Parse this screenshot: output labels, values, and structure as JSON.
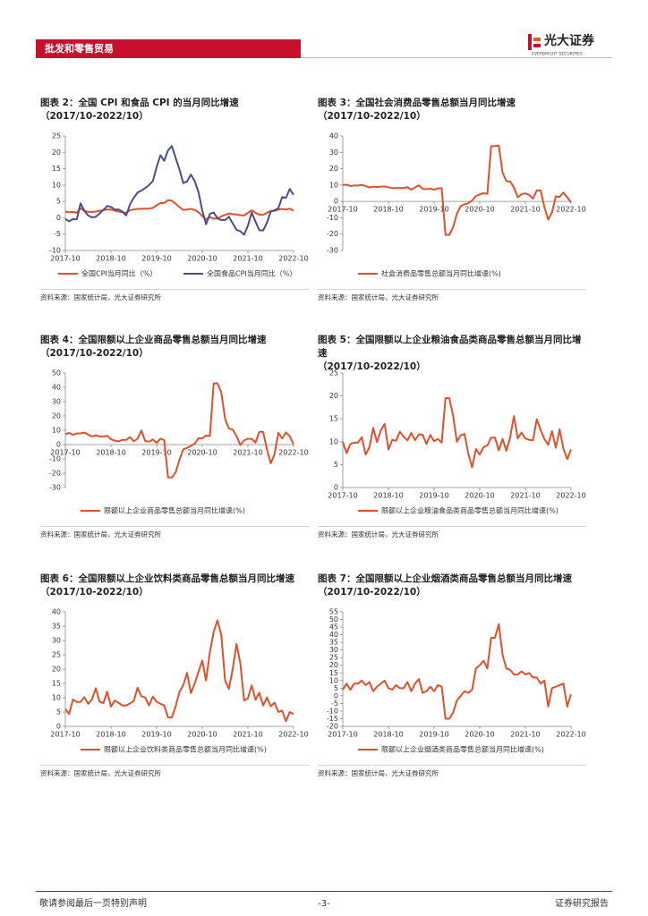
{
  "header": {
    "section": "批发和零售贸易",
    "logo": "光大证券",
    "logo_en": "EVERBRIGHT SECURITIES"
  },
  "chart_data": [
    {
      "type": "line",
      "title": "图表 2：全国 CPI 和食品 CPI 的当月同比增速",
      "subtitle": "（2017/10-2022/10）",
      "source": "资料来源：国家统计局，光大证券研究所",
      "x_labels_at": "bottom",
      "x": [
        "2017-10",
        "2017-11",
        "2017-12",
        "2018-01",
        "2018-02",
        "2018-03",
        "2018-04",
        "2018-05",
        "2018-06",
        "2018-07",
        "2018-08",
        "2018-09",
        "2018-10",
        "2018-11",
        "2018-12",
        "2019-01",
        "2019-02",
        "2019-03",
        "2019-04",
        "2019-05",
        "2019-06",
        "2019-07",
        "2019-08",
        "2019-09",
        "2019-10",
        "2019-11",
        "2019-12",
        "2020-01",
        "2020-02",
        "2020-03",
        "2020-04",
        "2020-05",
        "2020-06",
        "2020-07",
        "2020-08",
        "2020-09",
        "2020-10",
        "2020-11",
        "2020-12",
        "2021-01",
        "2021-02",
        "2021-03",
        "2021-04",
        "2021-05",
        "2021-06",
        "2021-07",
        "2021-08",
        "2021-09",
        "2021-10",
        "2021-11",
        "2021-12",
        "2022-01",
        "2022-02",
        "2022-03",
        "2022-04",
        "2022-05",
        "2022-06",
        "2022-07",
        "2022-08",
        "2022-09",
        "2022-10"
      ],
      "xticks": [
        "2017-10",
        "2018-10",
        "2019-10",
        "2020-10",
        "2021-10",
        "2022-10"
      ],
      "ylim": [
        -10,
        25
      ],
      "yticks": [
        -10,
        -5,
        0,
        5,
        10,
        15,
        20,
        25
      ],
      "series": [
        {
          "name": "全国CPI当月同比（%）",
          "color": "#e0502a",
          "values": [
            1.9,
            1.7,
            1.8,
            1.5,
            2.9,
            2.1,
            1.8,
            1.8,
            1.9,
            2.1,
            2.3,
            2.5,
            2.5,
            2.2,
            1.9,
            1.7,
            1.5,
            2.3,
            2.5,
            2.7,
            2.7,
            2.8,
            2.8,
            3.0,
            3.8,
            4.5,
            4.5,
            5.4,
            5.2,
            4.3,
            3.3,
            2.4,
            2.5,
            2.7,
            2.4,
            1.7,
            0.5,
            -0.5,
            0.2,
            -0.3,
            -0.2,
            0.4,
            0.9,
            1.3,
            1.1,
            1.0,
            0.8,
            0.7,
            1.5,
            2.3,
            1.5,
            0.9,
            0.9,
            1.5,
            2.1,
            2.1,
            2.5,
            2.7,
            2.5,
            2.8,
            2.1
          ]
        },
        {
          "name": "全国食品CPI当月同比（%）",
          "color": "#4b4e8c",
          "values": [
            -0.4,
            -1.1,
            -0.4,
            -0.5,
            4.4,
            2.1,
            0.7,
            0.1,
            0.3,
            1.3,
            2.4,
            3.6,
            3.3,
            2.5,
            2.5,
            1.9,
            0.7,
            4.1,
            6.1,
            7.7,
            8.3,
            9.1,
            10.0,
            11.2,
            15.5,
            19.1,
            17.4,
            20.6,
            21.9,
            18.3,
            14.8,
            10.6,
            11.1,
            13.2,
            11.2,
            7.9,
            2.2,
            -2.0,
            1.2,
            1.6,
            -0.2,
            -0.7,
            -0.7,
            0.3,
            -1.7,
            -3.7,
            -4.1,
            -5.2,
            -2.4,
            1.6,
            -1.2,
            -3.8,
            -3.9,
            -1.5,
            1.9,
            2.3,
            2.9,
            6.3,
            6.1,
            8.8,
            7.0
          ]
        }
      ]
    },
    {
      "type": "line",
      "title": "图表 3：全国社会消费品零售总额当月同比增速",
      "subtitle": "（2017/10-2022/10）",
      "source": "资料来源：国家统计局，光大证券研究所",
      "x_labels_at": "zero",
      "x": [
        "2017-10",
        "2017-11",
        "2017-12",
        "2018-01",
        "2018-02",
        "2018-03",
        "2018-04",
        "2018-05",
        "2018-06",
        "2018-07",
        "2018-08",
        "2018-09",
        "2018-10",
        "2018-11",
        "2018-12",
        "2019-01",
        "2019-02",
        "2019-03",
        "2019-04",
        "2019-05",
        "2019-06",
        "2019-07",
        "2019-08",
        "2019-09",
        "2019-10",
        "2019-11",
        "2019-12",
        "2020-01",
        "2020-02",
        "2020-03",
        "2020-04",
        "2020-05",
        "2020-06",
        "2020-07",
        "2020-08",
        "2020-09",
        "2020-10",
        "2020-11",
        "2020-12",
        "2021-01",
        "2021-02",
        "2021-03",
        "2021-04",
        "2021-05",
        "2021-06",
        "2021-07",
        "2021-08",
        "2021-09",
        "2021-10",
        "2021-11",
        "2021-12",
        "2022-01",
        "2022-02",
        "2022-03",
        "2022-04",
        "2022-05",
        "2022-06",
        "2022-07",
        "2022-08",
        "2022-09",
        "2022-10"
      ],
      "xticks": [
        "2017-10",
        "2018-10",
        "2019-10",
        "2020-10",
        "2021-10",
        "2022-10"
      ],
      "ylim": [
        -30,
        40
      ],
      "yticks": [
        -30,
        -20,
        -10,
        0,
        10,
        20,
        30,
        40
      ],
      "series": [
        {
          "name": "社会消费品零售总额当月同比增速(%)",
          "color": "#e0502a",
          "values": [
            10.0,
            10.2,
            9.4,
            9.7,
            9.7,
            10.1,
            9.4,
            8.5,
            9.0,
            8.8,
            9.0,
            9.2,
            8.6,
            8.1,
            8.2,
            8.2,
            8.2,
            8.7,
            7.2,
            8.6,
            9.8,
            7.6,
            7.5,
            7.8,
            7.2,
            8.0,
            8.0,
            -20.5,
            -20.5,
            -15.8,
            -7.5,
            -2.8,
            -1.8,
            -1.1,
            0.5,
            3.3,
            4.3,
            5.0,
            4.6,
            33.8,
            33.8,
            34.2,
            17.7,
            12.4,
            12.1,
            8.5,
            2.5,
            4.4,
            4.9,
            3.9,
            1.7,
            6.7,
            6.7,
            -3.5,
            -11.1,
            -6.7,
            3.1,
            2.7,
            5.4,
            2.5,
            -0.5
          ]
        }
      ]
    },
    {
      "type": "line",
      "title": "图表 4：全国限额以上企业商品零售总额当月同比增速",
      "subtitle": "（2017/10-2022/10）",
      "source": "资料来源：国家统计局，光大证券研究所",
      "x_labels_at": "zero",
      "x": [
        "2017-10",
        "2017-11",
        "2017-12",
        "2018-01",
        "2018-02",
        "2018-03",
        "2018-04",
        "2018-05",
        "2018-06",
        "2018-07",
        "2018-08",
        "2018-09",
        "2018-10",
        "2018-11",
        "2018-12",
        "2019-01",
        "2019-02",
        "2019-03",
        "2019-04",
        "2019-05",
        "2019-06",
        "2019-07",
        "2019-08",
        "2019-09",
        "2019-10",
        "2019-11",
        "2019-12",
        "2020-01",
        "2020-02",
        "2020-03",
        "2020-04",
        "2020-05",
        "2020-06",
        "2020-07",
        "2020-08",
        "2020-09",
        "2020-10",
        "2020-11",
        "2020-12",
        "2021-01",
        "2021-02",
        "2021-03",
        "2021-04",
        "2021-05",
        "2021-06",
        "2021-07",
        "2021-08",
        "2021-09",
        "2021-10",
        "2021-11",
        "2021-12",
        "2022-01",
        "2022-02",
        "2022-03",
        "2022-04",
        "2022-05",
        "2022-06",
        "2022-07",
        "2022-08",
        "2022-09",
        "2022-10"
      ],
      "xticks": [
        "2017-10",
        "2018-10",
        "2019-10",
        "2020-10",
        "2021-10",
        "2022-10"
      ],
      "ylim": [
        -30,
        50
      ],
      "yticks": [
        -30,
        -20,
        -10,
        0,
        10,
        20,
        30,
        40,
        50
      ],
      "series": [
        {
          "name": "限额以上企业商品零售总额当月同比增速(%)",
          "color": "#e0502a",
          "values": [
            7.2,
            8.2,
            6.8,
            7.8,
            7.8,
            8.4,
            7.0,
            5.6,
            6.5,
            5.7,
            5.7,
            6.1,
            3.7,
            2.8,
            2.2,
            3.3,
            3.3,
            5.2,
            2.3,
            4.1,
            9.9,
            2.5,
            2.0,
            3.6,
            1.2,
            4.1,
            3.1,
            -23.0,
            -23.0,
            -19.4,
            -10.6,
            -3.4,
            -2.3,
            -1.0,
            0.6,
            4.4,
            4.4,
            6.3,
            6.0,
            42.8,
            42.8,
            36.4,
            18.0,
            11.2,
            10.5,
            6.0,
            -0.3,
            2.9,
            4.1,
            3.9,
            1.4,
            8.9,
            8.9,
            -3.2,
            -13.1,
            -6.7,
            8.2,
            4.2,
            8.5,
            5.8,
            0.2
          ]
        }
      ]
    },
    {
      "type": "line",
      "title": "图表 5：全国限额以上企业粮油食品类商品零售总额当月同比增速",
      "subtitle": "（2017/10-2022/10）",
      "source": "资料来源：国家统计局，光大证券研究所",
      "x_labels_at": "zero",
      "x": [
        "2017-10",
        "2017-11",
        "2017-12",
        "2018-01",
        "2018-02",
        "2018-03",
        "2018-04",
        "2018-05",
        "2018-06",
        "2018-07",
        "2018-08",
        "2018-09",
        "2018-10",
        "2018-11",
        "2018-12",
        "2019-01",
        "2019-02",
        "2019-03",
        "2019-04",
        "2019-05",
        "2019-06",
        "2019-07",
        "2019-08",
        "2019-09",
        "2019-10",
        "2019-11",
        "2019-12",
        "2020-01",
        "2020-02",
        "2020-03",
        "2020-04",
        "2020-05",
        "2020-06",
        "2020-07",
        "2020-08",
        "2020-09",
        "2020-10",
        "2020-11",
        "2020-12",
        "2021-01",
        "2021-02",
        "2021-03",
        "2021-04",
        "2021-05",
        "2021-06",
        "2021-07",
        "2021-08",
        "2021-09",
        "2021-10",
        "2021-11",
        "2021-12",
        "2022-01",
        "2022-02",
        "2022-03",
        "2022-04",
        "2022-05",
        "2022-06",
        "2022-07",
        "2022-08",
        "2022-09",
        "2022-10"
      ],
      "xticks": [
        "2017-10",
        "2018-10",
        "2019-10",
        "2020-10",
        "2021-10",
        "2022-10"
      ],
      "ylim": [
        0,
        25
      ],
      "yticks": [
        0,
        5,
        10,
        15,
        20,
        25
      ],
      "series": [
        {
          "name": "限额以上企业粮油食品类商品零售总额当月同比增速(%)",
          "color": "#e0502a",
          "values": [
            10.0,
            7.5,
            9.5,
            9.8,
            9.8,
            11.0,
            7.2,
            8.8,
            13.0,
            9.9,
            12.5,
            13.9,
            8.3,
            10.4,
            10.2,
            12.2,
            11.1,
            10.3,
            11.9,
            10.3,
            11.6,
            11.5,
            9.5,
            11.5,
            10.1,
            10.6,
            9.8,
            19.5,
            19.5,
            15.7,
            10.0,
            11.4,
            11.7,
            7.4,
            4.4,
            8.4,
            7.2,
            8.8,
            9.2,
            10.9,
            10.9,
            8.1,
            10.6,
            8.0,
            11.0,
            15.6,
            10.7,
            12.0,
            10.7,
            10.4,
            10.3,
            14.9,
            12.6,
            10.6,
            9.3,
            12.3,
            8.7,
            12.7,
            8.5,
            6.2,
            8.3
          ]
        }
      ]
    },
    {
      "type": "line",
      "title": "图表 6：全国限额以上企业饮料类商品零售总额当月同比增速",
      "subtitle": "（2017/10-2022/10）",
      "source": "资料来源：国家统计局，光大证券研究所",
      "x_labels_at": "zero",
      "x": [
        "2017-10",
        "2017-11",
        "2017-12",
        "2018-01",
        "2018-02",
        "2018-03",
        "2018-04",
        "2018-05",
        "2018-06",
        "2018-07",
        "2018-08",
        "2018-09",
        "2018-10",
        "2018-11",
        "2018-12",
        "2019-01",
        "2019-02",
        "2019-03",
        "2019-04",
        "2019-05",
        "2019-06",
        "2019-07",
        "2019-08",
        "2019-09",
        "2019-10",
        "2019-11",
        "2019-12",
        "2020-01",
        "2020-02",
        "2020-03",
        "2020-04",
        "2020-05",
        "2020-06",
        "2020-07",
        "2020-08",
        "2020-09",
        "2020-10",
        "2020-11",
        "2020-12",
        "2021-01",
        "2021-02",
        "2021-03",
        "2021-04",
        "2021-05",
        "2021-06",
        "2021-07",
        "2021-08",
        "2021-09",
        "2021-10",
        "2021-11",
        "2021-12",
        "2022-01",
        "2022-02",
        "2022-03",
        "2022-04",
        "2022-05",
        "2022-06",
        "2022-07",
        "2022-08",
        "2022-09",
        "2022-10"
      ],
      "xticks": [
        "2017-10",
        "2018-10",
        "2019-10",
        "2020-10",
        "2021-10",
        "2022-10"
      ],
      "ylim": [
        0,
        40
      ],
      "yticks": [
        0,
        5,
        10,
        15,
        20,
        25,
        30,
        35,
        40
      ],
      "series": [
        {
          "name": "限额以上企业饮料类商品零售总额当月同比增速(%)",
          "color": "#e0502a",
          "values": [
            6.1,
            4.3,
            9.4,
            8.5,
            8.5,
            10.2,
            7.9,
            9.4,
            13.3,
            8.6,
            8.1,
            12.1,
            6.9,
            9.0,
            8.2,
            7.3,
            7.3,
            8.0,
            8.9,
            13.5,
            10.5,
            10.1,
            7.3,
            10.4,
            8.6,
            7.9,
            7.3,
            3.1,
            3.1,
            7.0,
            12.0,
            14.4,
            18.7,
            11.6,
            15.0,
            19.0,
            23.0,
            16.0,
            26.0,
            33.0,
            37.0,
            32.0,
            16.0,
            13.1,
            20.0,
            28.8,
            22.1,
            9.0,
            9.8,
            14.3,
            9.3,
            11.7,
            7.3,
            10.1,
            7.0,
            8.3,
            5.0,
            5.5,
            1.8,
            5.0,
            4.3
          ]
        }
      ]
    },
    {
      "type": "line",
      "title": "图表 7：全国限额以上企业烟酒类商品零售总额当月同比增速",
      "subtitle": "（2017/10-2022/10）",
      "source": "资料来源：国家统计局，光大证券研究所",
      "x_labels_at": "bottom",
      "x": [
        "2017-10",
        "2017-11",
        "2017-12",
        "2018-01",
        "2018-02",
        "2018-03",
        "2018-04",
        "2018-05",
        "2018-06",
        "2018-07",
        "2018-08",
        "2018-09",
        "2018-10",
        "2018-11",
        "2018-12",
        "2019-01",
        "2019-02",
        "2019-03",
        "2019-04",
        "2019-05",
        "2019-06",
        "2019-07",
        "2019-08",
        "2019-09",
        "2019-10",
        "2019-11",
        "2019-12",
        "2020-01",
        "2020-02",
        "2020-03",
        "2020-04",
        "2020-05",
        "2020-06",
        "2020-07",
        "2020-08",
        "2020-09",
        "2020-10",
        "2020-11",
        "2020-12",
        "2021-01",
        "2021-02",
        "2021-03",
        "2021-04",
        "2021-05",
        "2021-06",
        "2021-07",
        "2021-08",
        "2021-09",
        "2021-10",
        "2021-11",
        "2021-12",
        "2022-01",
        "2022-02",
        "2022-03",
        "2022-04",
        "2022-05",
        "2022-06",
        "2022-07",
        "2022-08",
        "2022-09",
        "2022-10"
      ],
      "xticks": [
        "2017-10",
        "2018-10",
        "2019-10",
        "2020-10",
        "2021-10",
        "2022-10"
      ],
      "ylim": [
        -20,
        55
      ],
      "yticks": [
        -20,
        -15,
        -10,
        -5,
        0,
        5,
        10,
        15,
        20,
        25,
        30,
        35,
        40,
        45,
        50,
        55
      ],
      "series": [
        {
          "name": "限额以上企业烟酒类商品零售总额当月同比增速(%)",
          "color": "#e0502a",
          "values": [
            4,
            8,
            4,
            8,
            8,
            10,
            7,
            9,
            3,
            6,
            8,
            10,
            5,
            4,
            7,
            5,
            5,
            9,
            3,
            8,
            11,
            2,
            3,
            6,
            3,
            7,
            6,
            -15,
            -15,
            -11,
            -3,
            0,
            3,
            2,
            4,
            18,
            20,
            23,
            18,
            38,
            38,
            47,
            27,
            18,
            17,
            14,
            14,
            16,
            14,
            15,
            12,
            12,
            8,
            10,
            -7,
            5,
            6,
            7,
            8,
            -7,
            1
          ]
        }
      ]
    }
  ],
  "footer": {
    "disclaimer": "敬请参阅最后一页特别声明",
    "page": "-3-",
    "report_type": "证券研究报告"
  }
}
